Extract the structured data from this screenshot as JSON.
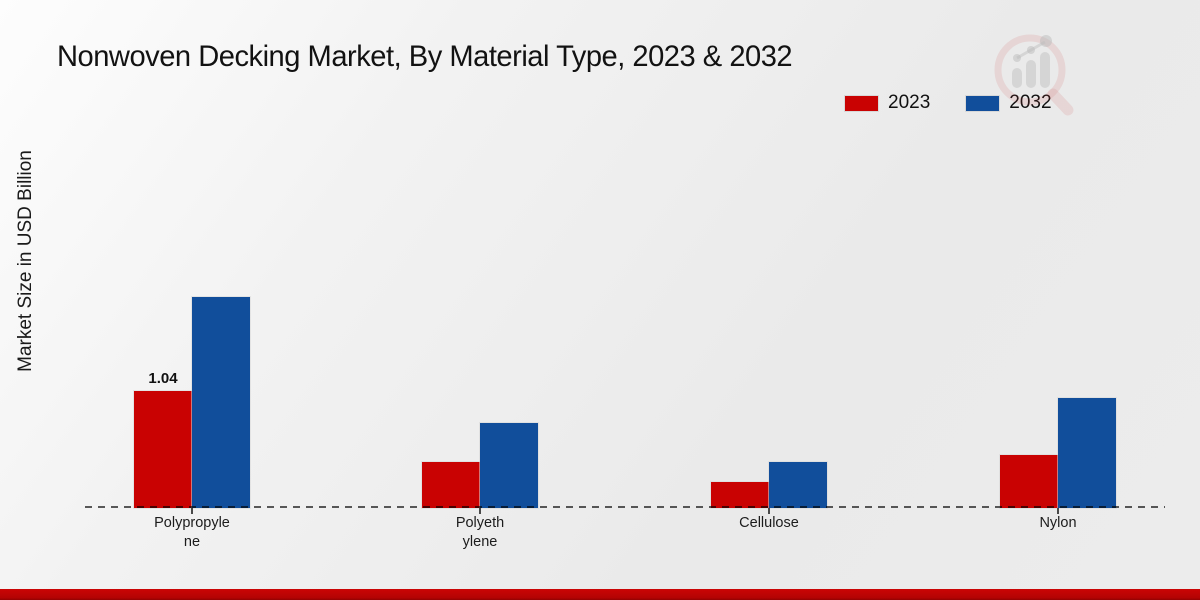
{
  "title": "Nonwoven Decking Market, By Material Type, 2023 & 2032",
  "y_axis_label": "Market Size in USD Billion",
  "legend": [
    {
      "label": "2023",
      "color": "#c90202"
    },
    {
      "label": "2032",
      "color": "#114e9b"
    }
  ],
  "colors": {
    "bar_2023": "#c90202",
    "bar_2032": "#114e9b",
    "bottom_strip": "#c00000",
    "axis": "#5c5c5c"
  },
  "watermark_icon": "magnifier-bar-chart-logo",
  "chart_data": {
    "type": "bar",
    "title": "Nonwoven Decking Market, By Material Type, 2023 & 2032",
    "xlabel": "",
    "ylabel": "Market Size in USD Billion",
    "categories": [
      "Polypropylene",
      "Polyethylene",
      "Cellulose",
      "Nylon"
    ],
    "category_display_lines": [
      [
        "Polypropyle",
        "ne"
      ],
      [
        "Polyeth",
        "ylene"
      ],
      [
        "Cellulose"
      ],
      [
        "Nylon"
      ]
    ],
    "series": [
      {
        "name": "2023",
        "color": "#c90202",
        "values": [
          1.04,
          0.4,
          0.22,
          0.47
        ]
      },
      {
        "name": "2032",
        "color": "#114e9b",
        "values": [
          1.88,
          0.75,
          0.4,
          0.98
        ]
      }
    ],
    "data_labels": [
      {
        "series": "2023",
        "category": "Polypropylene",
        "text": "1.04"
      }
    ],
    "ylim": [
      0,
      2.2
    ],
    "y_axis_ticks_visible": false,
    "grid": false,
    "legend_position": "top-right"
  }
}
